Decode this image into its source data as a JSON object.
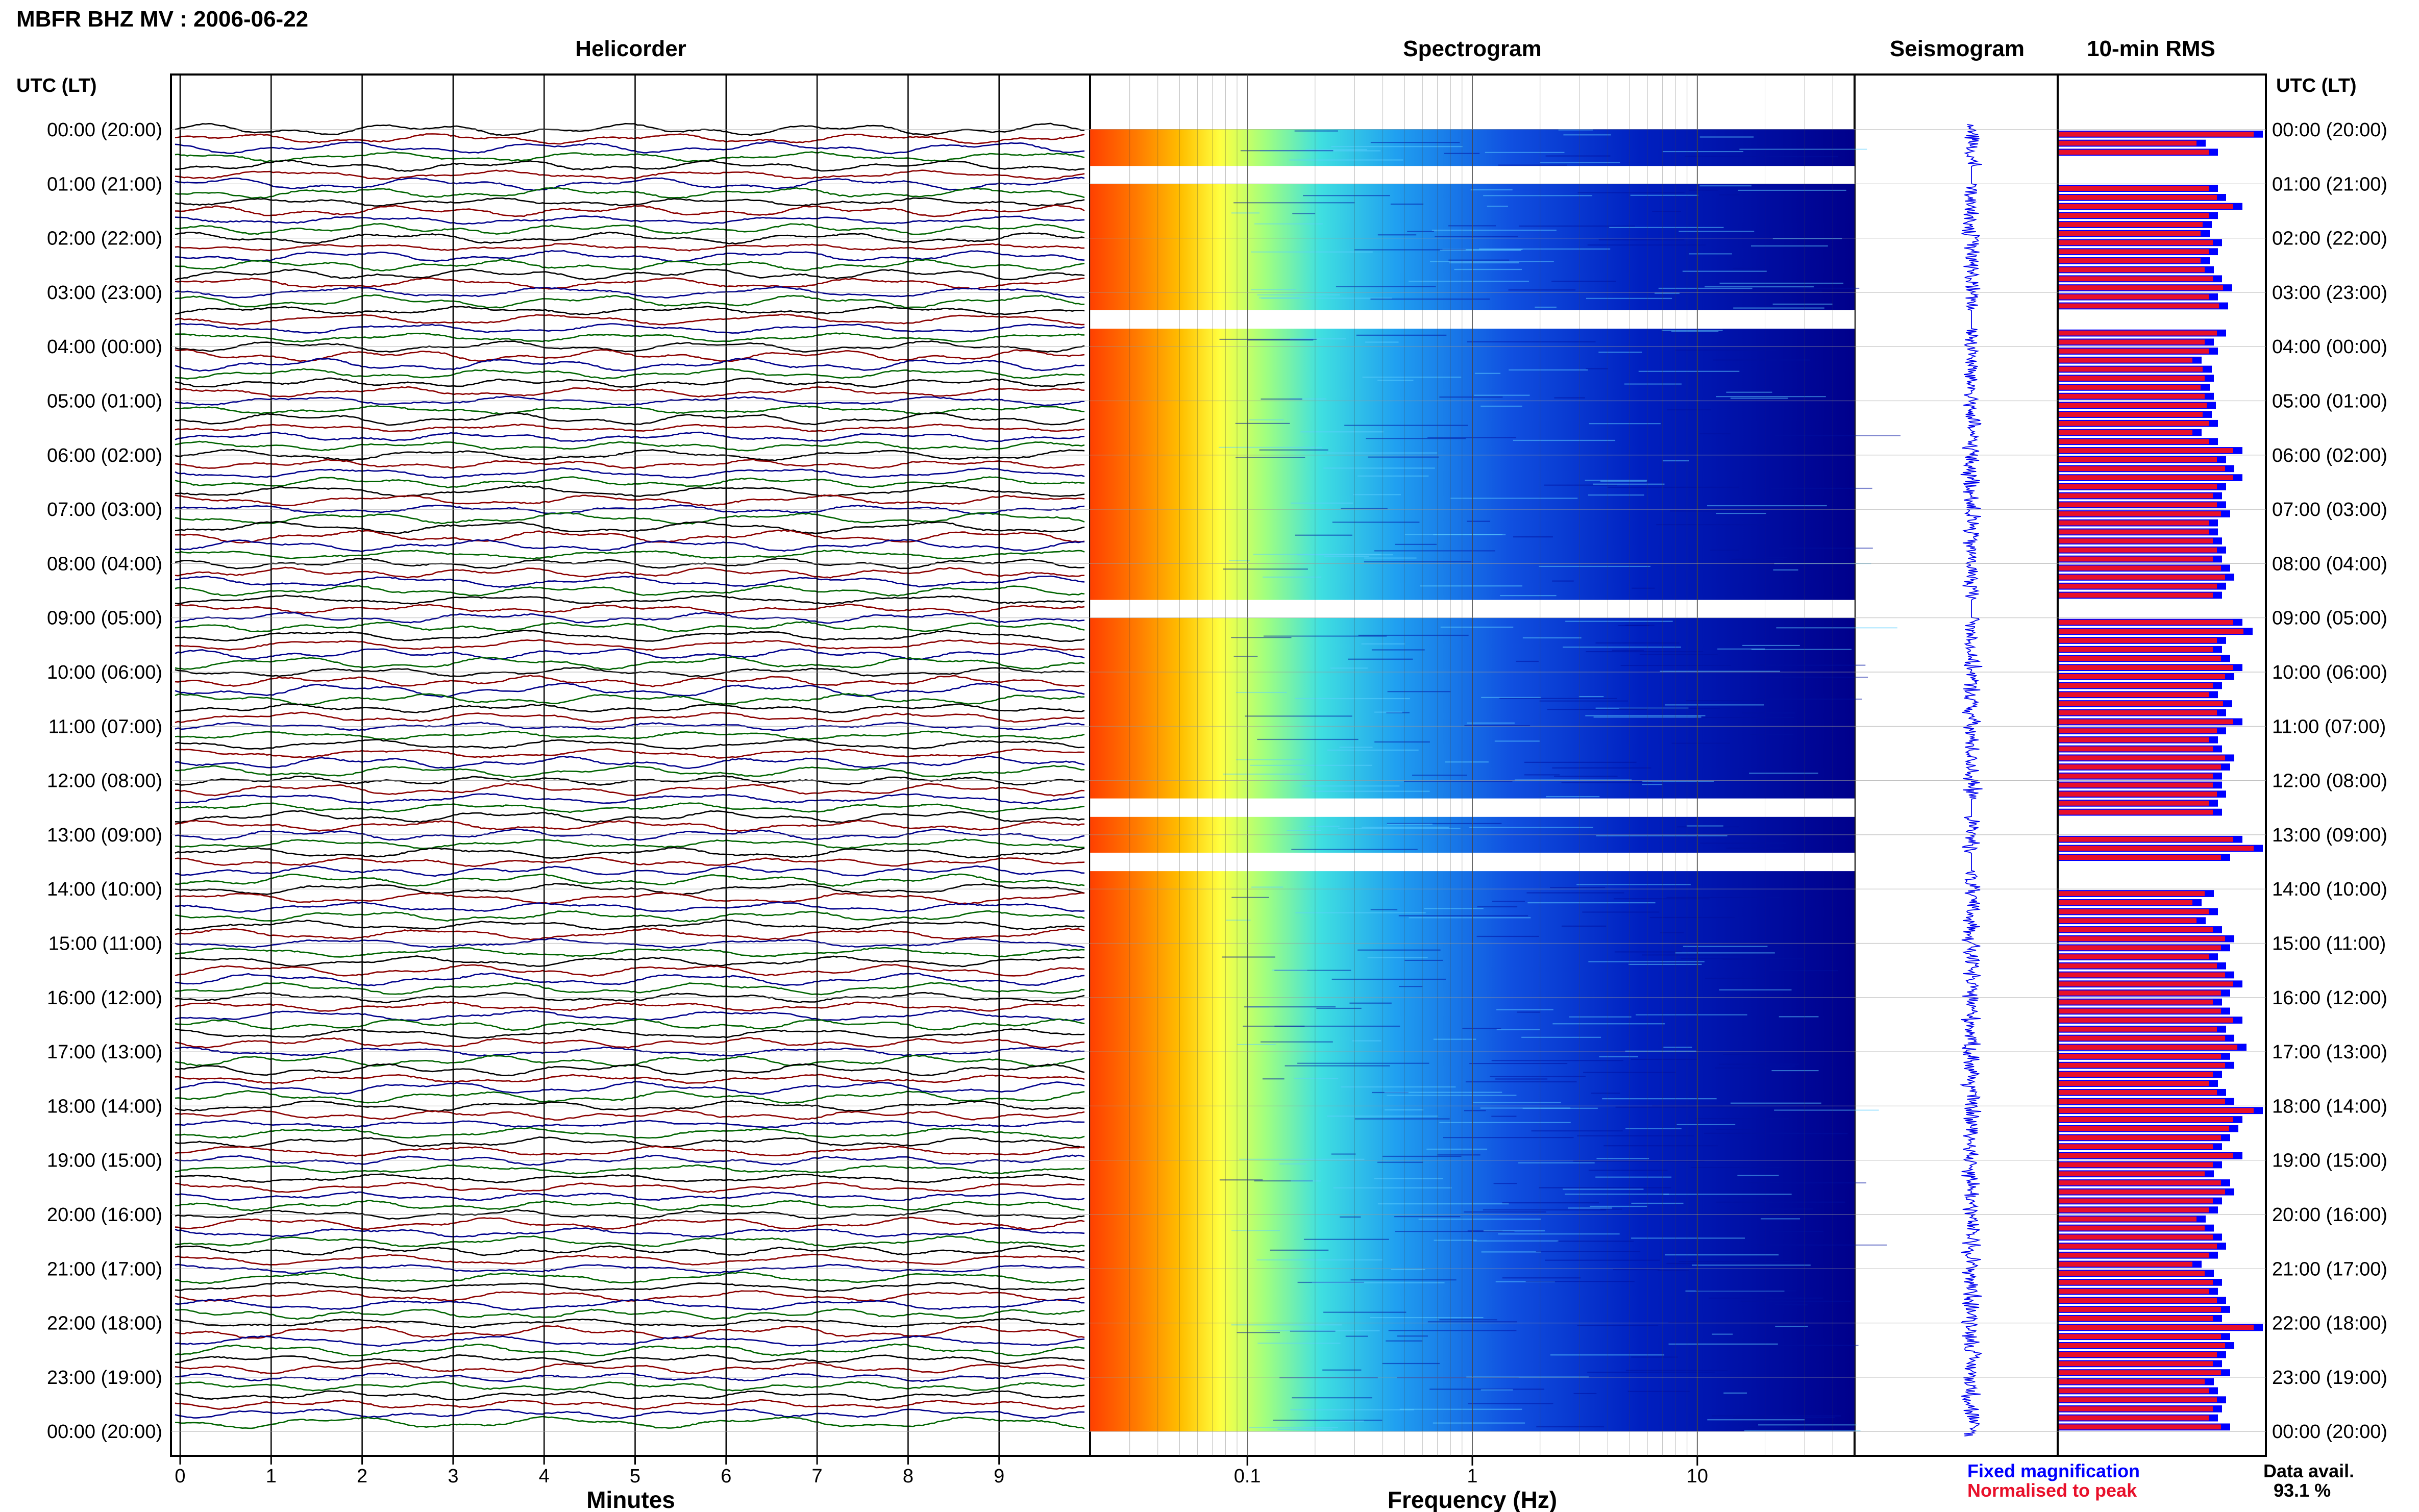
{
  "title": "MBFR BHZ MV : 2006-06-22",
  "panels": {
    "helicorder": "Helicorder",
    "spectrogram": "Spectrogram",
    "seismogram": "Seismogram",
    "rms": "10-min RMS"
  },
  "time_axis_header": "UTC (LT)",
  "time_labels": [
    "00:00 (20:00)",
    "01:00 (21:00)",
    "02:00 (22:00)",
    "03:00 (23:00)",
    "04:00 (00:00)",
    "05:00 (01:00)",
    "06:00 (02:00)",
    "07:00 (03:00)",
    "08:00 (04:00)",
    "09:00 (05:00)",
    "10:00 (06:00)",
    "11:00 (07:00)",
    "12:00 (08:00)",
    "13:00 (09:00)",
    "14:00 (10:00)",
    "15:00 (11:00)",
    "16:00 (12:00)",
    "17:00 (13:00)",
    "18:00 (14:00)",
    "19:00 (15:00)",
    "20:00 (16:00)",
    "21:00 (17:00)",
    "22:00 (18:00)",
    "23:00 (19:00)",
    "00:00 (20:00)"
  ],
  "helicorder_axis": {
    "xlabel": "Minutes",
    "ticks": [
      "0",
      "1",
      "2",
      "3",
      "4",
      "5",
      "6",
      "7",
      "8",
      "9"
    ]
  },
  "spectrogram_axis": {
    "xlabel": "Frequency (Hz)",
    "ticks": [
      "0.1",
      "1",
      "10"
    ]
  },
  "legend": {
    "fixed": "Fixed magnification",
    "normalised": "Normalised to peak"
  },
  "data_avail": {
    "label": "Data avail.",
    "value": "93.1 %"
  },
  "colors": {
    "trace_black": "#000000",
    "trace_red": "#8b0000",
    "trace_blue": "#00008b",
    "trace_green": "#006400",
    "rms_fixed": "#0000ff",
    "rms_normalised": "#e8102a",
    "spec_high": "#ff3000",
    "spec_low": "#00008b"
  },
  "chart_data": {
    "type": "heatmap",
    "hours": 24,
    "rows_per_hour": 6,
    "gaps_utc_hours": [
      [
        0.67,
        1.0
      ],
      [
        3.33,
        3.67
      ],
      [
        8.67,
        9.0
      ],
      [
        12.33,
        12.67
      ],
      [
        13.33,
        13.67
      ]
    ],
    "helicorder_minutes": [
      0,
      10
    ],
    "spectrogram_freq_range_hz": [
      0.02,
      50
    ],
    "spectrogram_scale": "log",
    "rms_fixed_relative": [
      1.0,
      0.72,
      0.78,
      0,
      0,
      0,
      0.78,
      0.82,
      0.9,
      0.78,
      0.75,
      0.74,
      0.8,
      0.78,
      0.74,
      0.76,
      0.8,
      0.85,
      0.78,
      0.83,
      0,
      0,
      0.82,
      0.76,
      0.78,
      0.7,
      0.75,
      0.76,
      0.74,
      0.76,
      0.77,
      0.75,
      0.78,
      0.7,
      0.78,
      0.9,
      0.82,
      0.86,
      0.9,
      0.82,
      0.8,
      0.82,
      0.84,
      0.78,
      0.78,
      0.8,
      0.82,
      0.8,
      0.84,
      0.86,
      0.82,
      0.8,
      0,
      0,
      0.9,
      0.95,
      0.82,
      0.8,
      0.84,
      0.9,
      0.86,
      0.8,
      0.78,
      0.85,
      0.82,
      0.9,
      0.82,
      0.78,
      0.8,
      0.86,
      0.84,
      0.8,
      0.8,
      0.82,
      0.78,
      0.8,
      0,
      0,
      0.9,
      1.0,
      0.84,
      0,
      0,
      0,
      0.76,
      0.7,
      0.78,
      0.72,
      0.8,
      0.86,
      0.84,
      0.78,
      0.82,
      0.86,
      0.9,
      0.84,
      0.8,
      0.84,
      0.9,
      0.82,
      0.86,
      0.92,
      0.84,
      0.86,
      0.8,
      0.78,
      0.82,
      0.86,
      1.0,
      0.9,
      0.88,
      0.84,
      0.8,
      0.9,
      0.8,
      0.76,
      0.84,
      0.86,
      0.8,
      0.78,
      0.72,
      0.76,
      0.8,
      0.82,
      0.78,
      0.7,
      0.76,
      0.8,
      0.78,
      0.82,
      0.84,
      0.8,
      1.0,
      0.84,
      0.86,
      0.82,
      0.8,
      0.84,
      0.76,
      0.78,
      0.82,
      0.8,
      0.78,
      0.84
    ]
  }
}
